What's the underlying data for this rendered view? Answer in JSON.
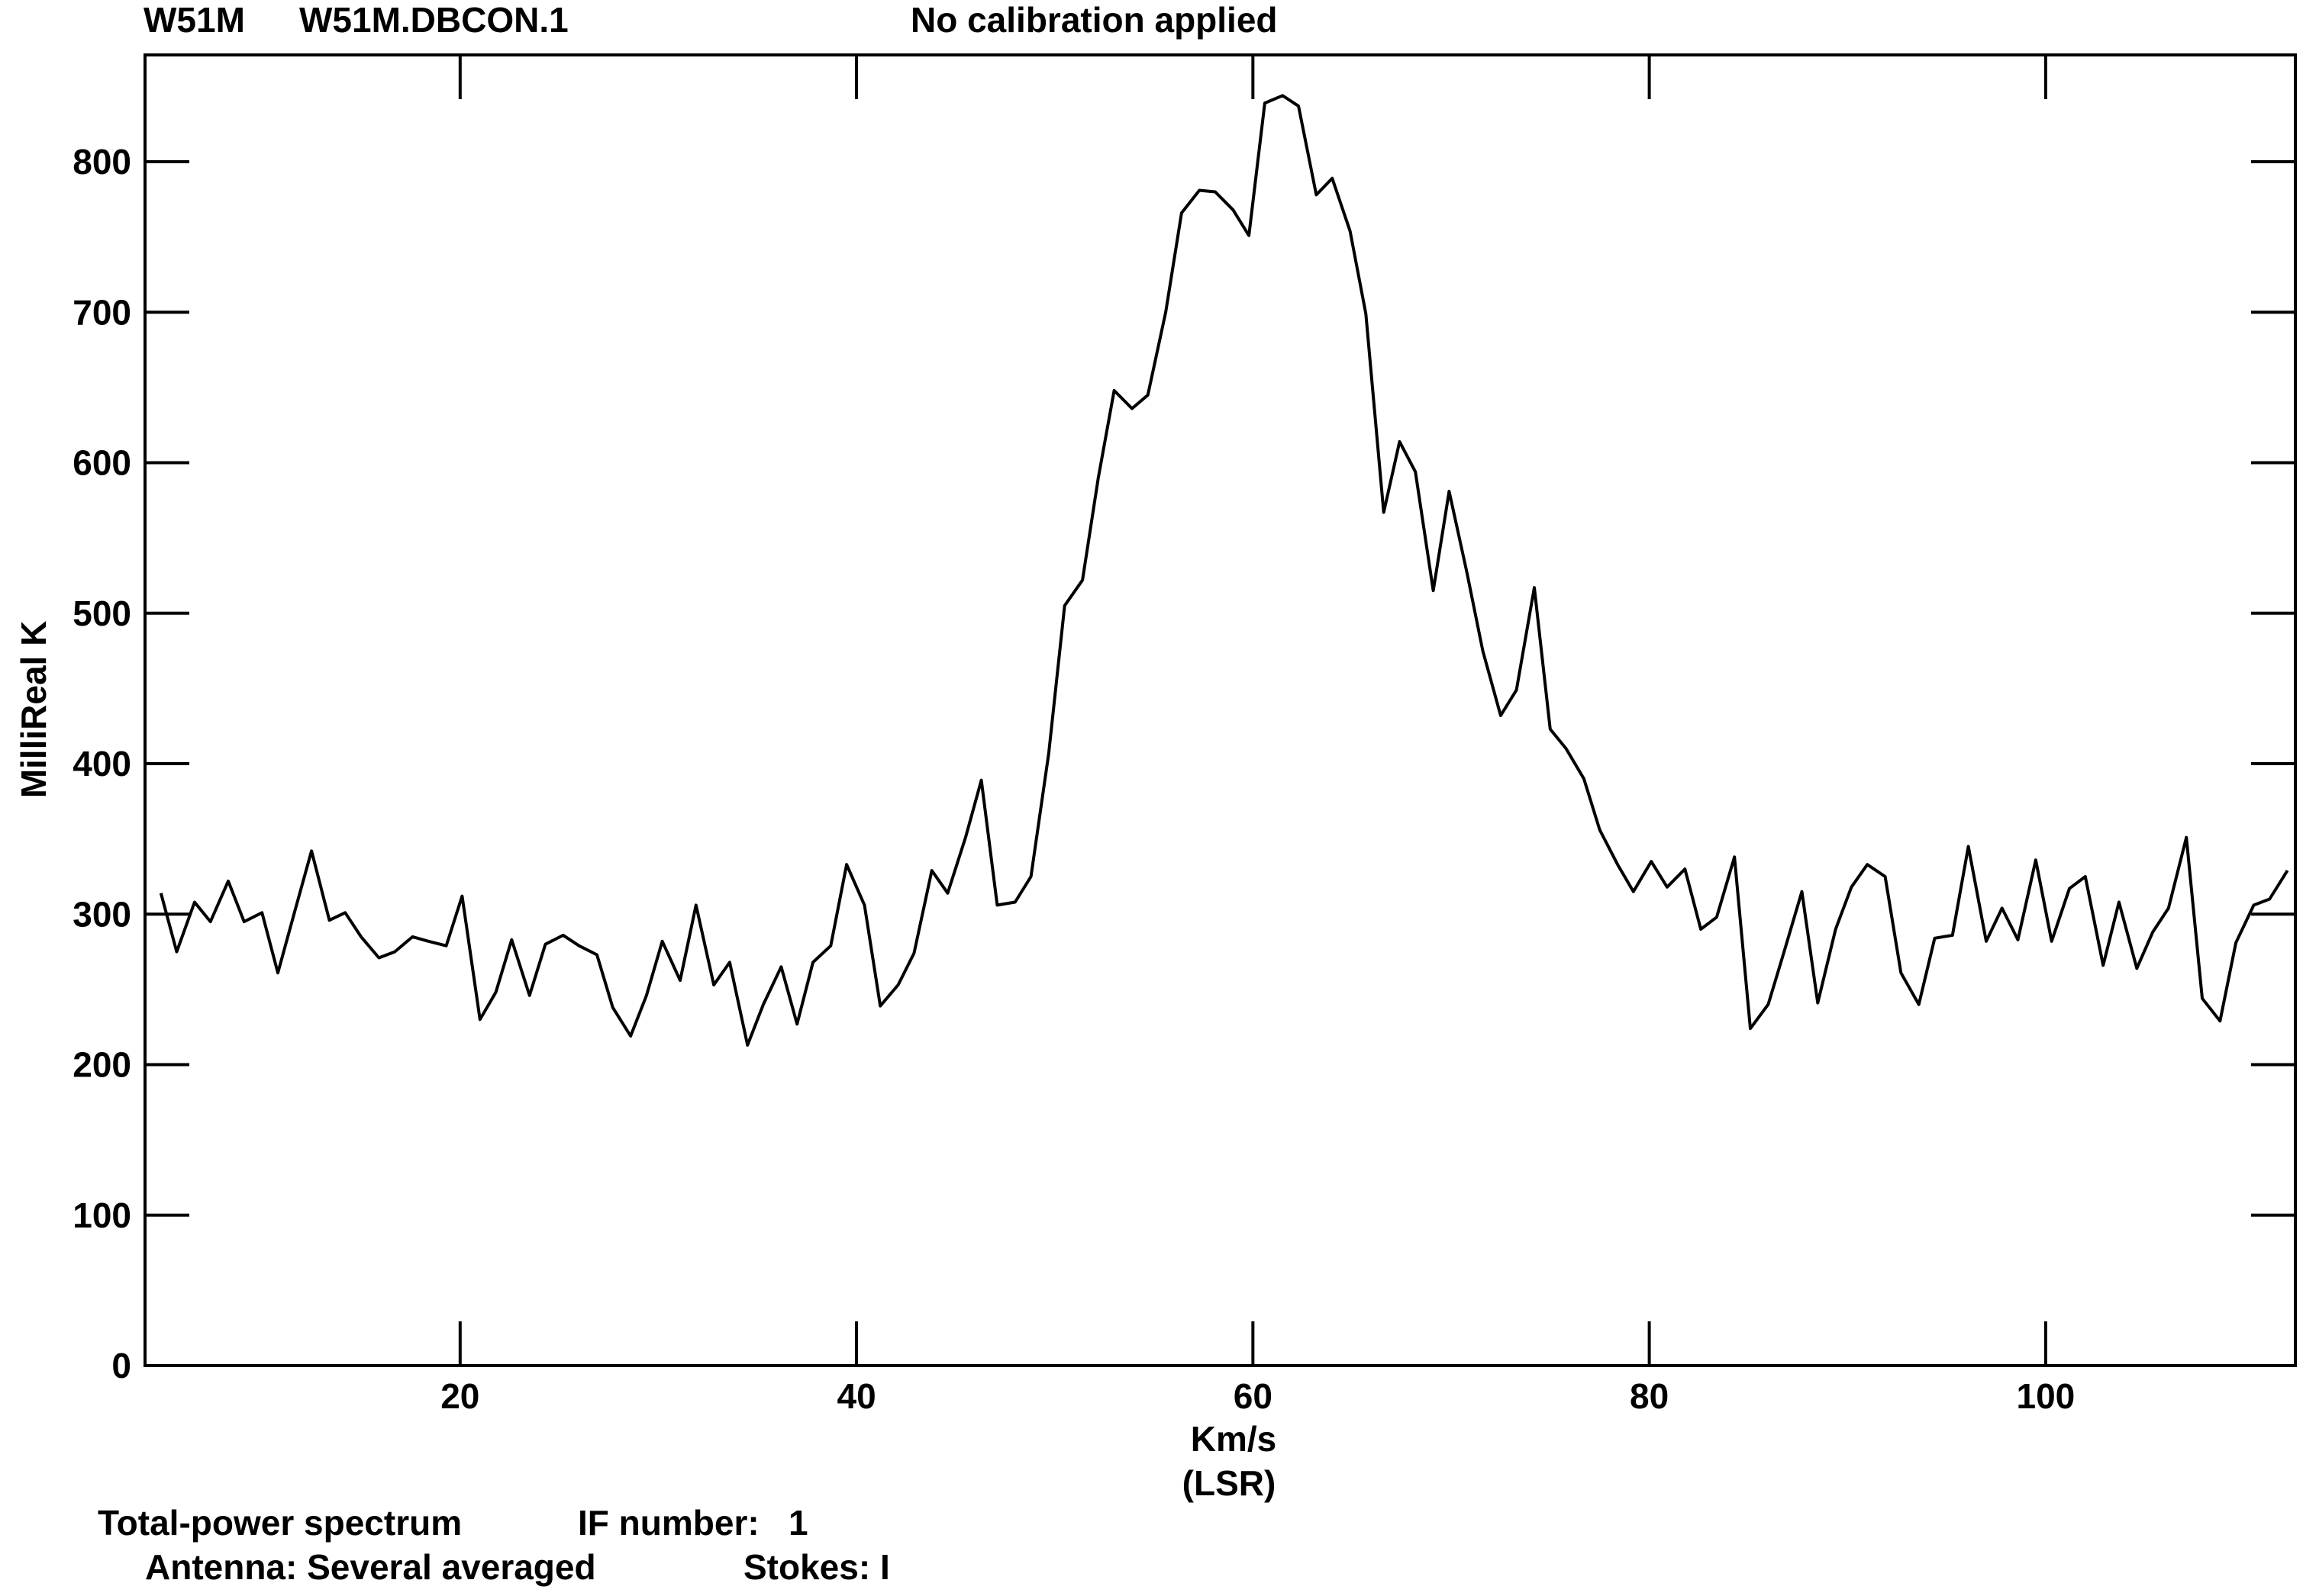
{
  "header": {
    "source": "W51M",
    "file": "W51M.DBCON.1",
    "calibration": "No calibration applied"
  },
  "footer": {
    "line1_left": "Total-power spectrum",
    "line1_right": "IF number:   1",
    "line2_left": "Antenna: Several averaged",
    "line2_right": "Stokes: I"
  },
  "chart_data": {
    "type": "line",
    "xlabel": "Km/s",
    "xlabel_sub": "(LSR)",
    "ylabel": "MilliReal K",
    "xlim": [
      4.1,
      112.6
    ],
    "ylim": [
      0,
      871
    ],
    "x_ticks": [
      20,
      40,
      60,
      80,
      100
    ],
    "y_ticks": [
      0,
      100,
      200,
      300,
      400,
      500,
      600,
      700,
      800
    ],
    "grid": false,
    "series": [
      {
        "x": [
          4.9,
          5.7,
          6.6,
          7.4,
          8.3,
          9.1,
          10.0,
          10.8,
          11.7,
          12.5,
          13.4,
          14.2,
          15.0,
          15.9,
          16.7,
          17.6,
          18.4,
          19.3,
          20.1,
          21.0,
          21.8,
          22.6,
          23.5,
          24.3,
          25.2,
          26.0,
          26.9,
          27.7,
          28.6,
          29.4,
          30.2,
          31.1,
          31.9,
          32.8,
          33.6,
          34.5,
          35.3,
          36.2,
          37.0,
          37.8,
          38.7,
          39.5,
          40.4,
          41.2,
          42.1,
          42.9,
          43.8,
          44.6,
          45.5,
          46.3,
          47.1,
          48.0,
          48.8,
          49.7,
          50.5,
          51.4,
          52.2,
          53.0,
          53.9,
          54.7,
          55.6,
          56.4,
          57.3,
          58.1,
          59.0,
          59.8,
          60.6,
          61.5,
          62.3,
          63.2,
          64.0,
          64.9,
          65.7,
          66.6,
          67.4,
          68.2,
          69.1,
          69.9,
          70.8,
          71.6,
          72.5,
          73.3,
          74.2,
          75.0,
          75.8,
          76.7,
          77.5,
          78.4,
          79.2,
          80.1,
          80.9,
          81.8,
          82.6,
          83.4,
          84.3,
          85.1,
          86.0,
          86.8,
          87.7,
          88.5,
          89.4,
          90.2,
          91.0,
          91.9,
          92.7,
          93.6,
          94.4,
          95.3,
          96.1,
          97.0,
          97.8,
          98.6,
          99.5,
          100.3,
          101.2,
          102.0,
          102.9,
          103.7,
          104.6,
          105.4,
          106.2,
          107.1,
          107.9,
          108.8,
          109.6,
          110.5,
          111.3,
          112.2
        ],
        "values": [
          314,
          275,
          308,
          295,
          322,
          295,
          301,
          261,
          304,
          342,
          296,
          301,
          285,
          271,
          275,
          285,
          282,
          279,
          312,
          230,
          248,
          283,
          246,
          280,
          286,
          279,
          273,
          238,
          219,
          246,
          282,
          256,
          306,
          253,
          268,
          213,
          240,
          265,
          227,
          268,
          279,
          333,
          306,
          239,
          253,
          274,
          329,
          314,
          351,
          389,
          306,
          308,
          325,
          407,
          505,
          522,
          590,
          648,
          636,
          645,
          700,
          766,
          781,
          780,
          768,
          751,
          839,
          844,
          837,
          778,
          789,
          754,
          699,
          567,
          614,
          594,
          515,
          581,
          527,
          475,
          432,
          449,
          517,
          423,
          410,
          390,
          356,
          333,
          315,
          335,
          318,
          330,
          290,
          298,
          338,
          224,
          240,
          275,
          315,
          241,
          290,
          318,
          333,
          325,
          261,
          240,
          284,
          286,
          345,
          282,
          304,
          283,
          336,
          282,
          317,
          325,
          266,
          308,
          264,
          288,
          304,
          351,
          244,
          229,
          281,
          306,
          310,
          329
        ]
      }
    ]
  }
}
